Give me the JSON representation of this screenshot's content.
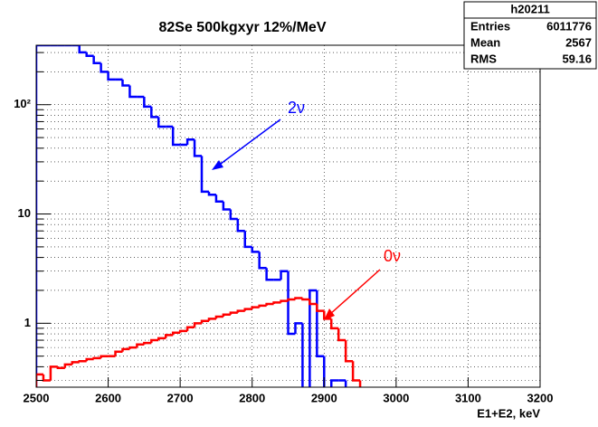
{
  "chart_data": {
    "type": "histogram",
    "title": "82Se  500kgxyr  12%/MeV",
    "x_label": "E1+E2, keV",
    "bins": [
      2500,
      2510,
      2520,
      2530,
      2540,
      2550,
      2560,
      2570,
      2580,
      2590,
      2600,
      2610,
      2620,
      2630,
      2640,
      2650,
      2660,
      2670,
      2680,
      2690,
      2700,
      2710,
      2720,
      2730,
      2740,
      2750,
      2760,
      2770,
      2780,
      2790,
      2800,
      2810,
      2820,
      2830,
      2840,
      2850,
      2860,
      2870,
      2880,
      2890,
      2900,
      2910,
      2920,
      2930,
      2940,
      2950,
      2960,
      2970,
      2980,
      2990,
      3000,
      3010,
      3020,
      3030,
      3040,
      3050,
      3060,
      3070,
      3080,
      3090,
      3100,
      3110,
      3120,
      3130,
      3140,
      3150,
      3160,
      3170,
      3180,
      3190,
      3200
    ],
    "series": [
      {
        "name": "2ν",
        "color": "#0000ff",
        "values": [
          350,
          350,
          350,
          350,
          350,
          350,
          301,
          280,
          240,
          200,
          170,
          170,
          150,
          118,
          118,
          96,
          77,
          63,
          63,
          43,
          43,
          48,
          34,
          16,
          15,
          13,
          11,
          9,
          7,
          5,
          4.5,
          3.2,
          2.5,
          2.5,
          3.0,
          0.8,
          1.0,
          0,
          2.0,
          0.5,
          0,
          0.3,
          0.3,
          0,
          0,
          0,
          0,
          0,
          0,
          0,
          0,
          0,
          0,
          0,
          0,
          0,
          0,
          0,
          0,
          0,
          0,
          0,
          0,
          0,
          0,
          0,
          0,
          0,
          0,
          0
        ]
      },
      {
        "name": "0ν",
        "color": "#ff0000",
        "values": [
          0.34,
          0.3,
          0.4,
          0.39,
          0.42,
          0.44,
          0.45,
          0.47,
          0.48,
          0.5,
          0.5,
          0.55,
          0.58,
          0.6,
          0.64,
          0.66,
          0.7,
          0.73,
          0.78,
          0.82,
          0.85,
          0.92,
          1.0,
          1.05,
          1.1,
          1.15,
          1.2,
          1.25,
          1.3,
          1.35,
          1.4,
          1.45,
          1.5,
          1.55,
          1.6,
          1.65,
          1.7,
          1.65,
          1.5,
          1.3,
          1.1,
          0.9,
          0.7,
          0.45,
          0.3,
          0,
          0,
          0,
          0,
          0,
          0,
          0,
          0,
          0,
          0,
          0,
          0,
          0,
          0,
          0,
          0,
          0,
          0,
          0,
          0,
          0,
          0,
          0,
          0,
          0
        ]
      }
    ],
    "xlim": [
      2500,
      3200
    ],
    "xticks": [
      2500,
      2600,
      2700,
      2800,
      2900,
      3000,
      3100,
      3200
    ],
    "ylim": [
      0.26,
      350
    ],
    "yticks": [
      1,
      10,
      {
        "value": 100,
        "label": "10²"
      }
    ],
    "yminorticks": [
      0.3,
      0.4,
      0.5,
      0.6,
      0.7,
      0.8,
      0.9,
      2,
      3,
      4,
      5,
      6,
      7,
      8,
      9,
      20,
      30,
      40,
      50,
      60,
      70,
      80,
      90,
      200,
      300
    ],
    "log_y": true,
    "grid": true,
    "stats": {
      "name": "h20211",
      "rows": [
        [
          "Entries",
          "6011776"
        ],
        [
          "Mean",
          "2567"
        ],
        [
          "RMS",
          "59.16"
        ]
      ]
    }
  }
}
